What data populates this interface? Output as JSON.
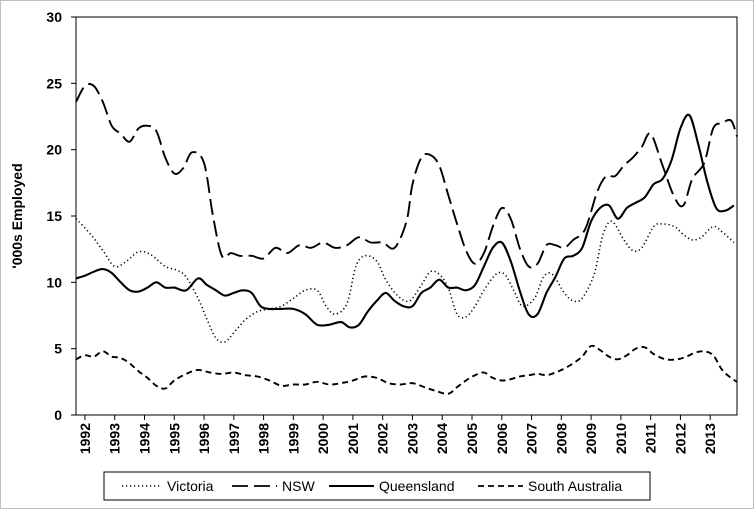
{
  "chart_data": {
    "type": "line",
    "title": "",
    "xlabel": "",
    "ylabel": "'000s Employed",
    "ylim": [
      0,
      30
    ],
    "xlim": [
      1991.7,
      2013.9
    ],
    "yticks": [
      0,
      5,
      10,
      15,
      20,
      25,
      30
    ],
    "xticks": [
      "1992",
      "1993",
      "1994",
      "1995",
      "1996",
      "1997",
      "1998",
      "1999",
      "2000",
      "2001",
      "2002",
      "2003",
      "2004",
      "2005",
      "2006",
      "2007",
      "2008",
      "2009",
      "2010",
      "2011",
      "2012",
      "2013"
    ],
    "grid": false,
    "legend_position": "bottom",
    "series": [
      {
        "name": "Victoria",
        "style": "dotted",
        "color": "#000000",
        "x": [
          1991.7,
          1992.2,
          1992.6,
          1993.0,
          1993.4,
          1993.8,
          1994.2,
          1994.7,
          1995.1,
          1995.4,
          1995.8,
          1996.1,
          1996.4,
          1996.7,
          1997.0,
          1997.4,
          1997.8,
          1998.2,
          1998.6,
          1999.0,
          1999.4,
          1999.8,
          2000.1,
          2000.4,
          2000.8,
          2001.1,
          2001.4,
          2001.8,
          2002.1,
          2002.5,
          2002.9,
          2003.3,
          2003.6,
          2003.9,
          2004.2,
          2004.5,
          2004.8,
          2005.1,
          2005.4,
          2005.8,
          2006.1,
          2006.4,
          2006.7,
          2007.1,
          2007.4,
          2007.7,
          2008.1,
          2008.4,
          2008.7,
          2009.1,
          2009.4,
          2009.7,
          2010.1,
          2010.4,
          2010.7,
          2011.1,
          2011.4,
          2011.8,
          2012.1,
          2012.4,
          2012.7,
          2013.1,
          2013.4,
          2013.8
        ],
        "values": [
          14.8,
          13.6,
          12.4,
          11.2,
          11.6,
          12.3,
          12.1,
          11.2,
          10.9,
          10.4,
          8.8,
          7.2,
          5.8,
          5.5,
          6.2,
          7.2,
          7.8,
          8.0,
          8.2,
          8.8,
          9.4,
          9.4,
          8.2,
          7.6,
          8.4,
          11.2,
          12.0,
          11.6,
          10.2,
          9.0,
          8.6,
          9.8,
          10.8,
          10.6,
          9.6,
          7.6,
          7.4,
          8.2,
          9.4,
          10.6,
          10.6,
          9.4,
          8.2,
          8.8,
          10.4,
          10.6,
          9.2,
          8.6,
          8.8,
          10.6,
          13.6,
          14.6,
          13.2,
          12.4,
          12.6,
          14.2,
          14.4,
          14.2,
          13.6,
          13.2,
          13.4,
          14.2,
          13.8,
          13.0
        ]
      },
      {
        "name": "NSW",
        "style": "long-dash",
        "color": "#000000",
        "x": [
          1991.7,
          1992.0,
          1992.3,
          1992.6,
          1992.9,
          1993.2,
          1993.5,
          1993.8,
          1994.1,
          1994.4,
          1994.7,
          1995.0,
          1995.3,
          1995.6,
          1996.0,
          1996.3,
          1996.6,
          1996.9,
          1997.2,
          1997.6,
          1998.0,
          1998.4,
          1998.8,
          1999.2,
          1999.6,
          2000.0,
          2000.4,
          2000.8,
          2001.2,
          2001.6,
          2002.0,
          2002.4,
          2002.8,
          2003.0,
          2003.3,
          2003.6,
          2003.9,
          2004.2,
          2004.5,
          2004.8,
          2005.1,
          2005.4,
          2005.7,
          2006.0,
          2006.3,
          2006.6,
          2006.9,
          2007.2,
          2007.5,
          2007.8,
          2008.1,
          2008.4,
          2008.8,
          2009.2,
          2009.5,
          2009.8,
          2010.1,
          2010.4,
          2010.7,
          2011.0,
          2011.4,
          2011.8,
          2012.1,
          2012.4,
          2012.8,
          2013.1,
          2013.4,
          2013.7,
          2013.9
        ],
        "values": [
          23.6,
          24.8,
          24.8,
          23.6,
          21.8,
          21.2,
          20.6,
          21.6,
          21.8,
          21.4,
          19.4,
          18.2,
          18.6,
          19.8,
          19.0,
          15.0,
          12.0,
          12.2,
          12.0,
          12.0,
          11.8,
          12.6,
          12.2,
          12.8,
          12.6,
          13.0,
          12.6,
          12.8,
          13.4,
          13.0,
          13.0,
          12.6,
          14.6,
          17.4,
          19.4,
          19.6,
          18.8,
          16.6,
          14.4,
          12.4,
          11.4,
          12.2,
          14.2,
          15.6,
          14.8,
          12.6,
          11.2,
          11.4,
          12.8,
          12.8,
          12.6,
          13.2,
          14.0,
          16.8,
          18.0,
          18.0,
          18.8,
          19.4,
          20.2,
          21.2,
          18.8,
          16.4,
          15.8,
          17.8,
          19.0,
          21.6,
          22.0,
          22.2,
          21.0
        ]
      },
      {
        "name": "Queensland",
        "style": "solid",
        "color": "#000000",
        "x": [
          1991.7,
          1992.0,
          1992.3,
          1992.6,
          1992.9,
          1993.2,
          1993.5,
          1993.8,
          1994.1,
          1994.4,
          1994.7,
          1995.0,
          1995.4,
          1995.8,
          1996.1,
          1996.4,
          1996.7,
          1997.0,
          1997.3,
          1997.6,
          1997.9,
          1998.2,
          1998.6,
          1999.0,
          1999.4,
          1999.8,
          2000.2,
          2000.6,
          2000.9,
          2001.2,
          2001.5,
          2001.8,
          2002.1,
          2002.4,
          2002.7,
          2003.0,
          2003.3,
          2003.6,
          2003.9,
          2004.2,
          2004.5,
          2004.8,
          2005.1,
          2005.4,
          2005.7,
          2006.0,
          2006.3,
          2006.6,
          2006.9,
          2007.2,
          2007.5,
          2007.8,
          2008.1,
          2008.4,
          2008.7,
          2009.0,
          2009.3,
          2009.6,
          2009.9,
          2010.2,
          2010.5,
          2010.8,
          2011.1,
          2011.4,
          2011.7,
          2012.0,
          2012.3,
          2012.6,
          2012.9,
          2013.2,
          2013.5,
          2013.8
        ],
        "values": [
          10.3,
          10.5,
          10.8,
          11.0,
          10.7,
          10.0,
          9.4,
          9.3,
          9.6,
          10.0,
          9.6,
          9.6,
          9.4,
          10.3,
          9.8,
          9.4,
          9.0,
          9.2,
          9.4,
          9.2,
          8.2,
          8.0,
          8.0,
          8.0,
          7.6,
          6.8,
          6.8,
          7.0,
          6.6,
          6.8,
          7.8,
          8.6,
          9.2,
          8.6,
          8.2,
          8.2,
          9.2,
          9.6,
          10.2,
          9.6,
          9.6,
          9.4,
          9.8,
          11.2,
          12.6,
          13.0,
          11.6,
          9.4,
          7.6,
          7.6,
          9.2,
          10.4,
          11.8,
          12.0,
          12.6,
          14.6,
          15.6,
          15.8,
          14.8,
          15.6,
          16.0,
          16.4,
          17.4,
          17.8,
          19.2,
          21.6,
          22.6,
          20.4,
          17.6,
          15.6,
          15.4,
          15.8
        ]
      },
      {
        "name": "South Australia",
        "style": "dashed",
        "color": "#000000",
        "x": [
          1991.7,
          1992.0,
          1992.3,
          1992.6,
          1992.9,
          1993.2,
          1993.5,
          1993.8,
          1994.1,
          1994.4,
          1994.7,
          1995.0,
          1995.4,
          1995.8,
          1996.2,
          1996.6,
          1997.0,
          1997.4,
          1997.8,
          1998.2,
          1998.6,
          1999.0,
          1999.4,
          1999.8,
          2000.2,
          2000.6,
          2001.0,
          2001.4,
          2001.8,
          2002.2,
          2002.6,
          2003.0,
          2003.4,
          2003.8,
          2004.2,
          2004.5,
          2004.8,
          2005.1,
          2005.4,
          2005.7,
          2006.0,
          2006.3,
          2006.6,
          2006.9,
          2007.2,
          2007.5,
          2007.8,
          2008.1,
          2008.4,
          2008.7,
          2009.0,
          2009.3,
          2009.6,
          2009.9,
          2010.2,
          2010.5,
          2010.8,
          2011.1,
          2011.5,
          2011.9,
          2012.2,
          2012.5,
          2012.8,
          2013.1,
          2013.4,
          2013.7,
          2013.9
        ],
        "values": [
          4.2,
          4.5,
          4.4,
          4.8,
          4.4,
          4.3,
          3.9,
          3.3,
          2.8,
          2.2,
          2.0,
          2.6,
          3.1,
          3.4,
          3.2,
          3.1,
          3.2,
          3.0,
          2.9,
          2.6,
          2.2,
          2.3,
          2.3,
          2.5,
          2.3,
          2.4,
          2.6,
          2.9,
          2.8,
          2.4,
          2.3,
          2.4,
          2.1,
          1.8,
          1.6,
          2.1,
          2.6,
          3.0,
          3.2,
          2.8,
          2.6,
          2.7,
          2.9,
          3.0,
          3.1,
          3.0,
          3.2,
          3.5,
          3.9,
          4.4,
          5.2,
          4.9,
          4.4,
          4.2,
          4.5,
          5.0,
          5.1,
          4.6,
          4.2,
          4.2,
          4.4,
          4.7,
          4.8,
          4.5,
          3.4,
          2.8,
          2.5
        ]
      }
    ]
  }
}
